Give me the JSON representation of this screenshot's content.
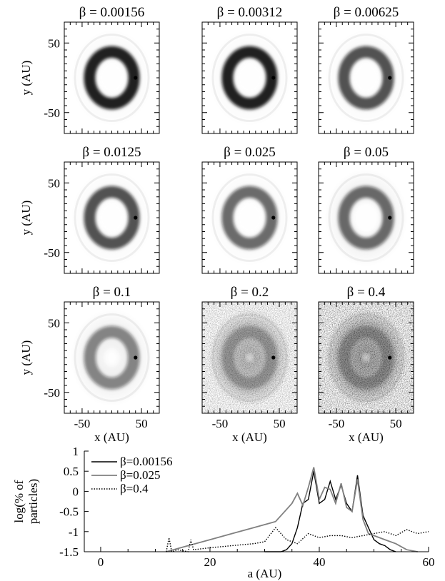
{
  "panels": [
    {
      "title": "β = 0.00156",
      "beta": 0.00156
    },
    {
      "title": "β = 0.00312",
      "beta": 0.00312
    },
    {
      "title": "β = 0.00625",
      "beta": 0.00625
    },
    {
      "title": "β = 0.0125",
      "beta": 0.0125
    },
    {
      "title": "β = 0.025",
      "beta": 0.025
    },
    {
      "title": "β = 0.05",
      "beta": 0.05
    },
    {
      "title": "β = 0.1",
      "beta": 0.1
    },
    {
      "title": "β = 0.2",
      "beta": 0.2
    },
    {
      "title": "β = 0.4",
      "beta": 0.4
    }
  ],
  "map_axes": {
    "xlabel": "x (AU)",
    "ylabel": "y (AU)",
    "xlim": [
      -80,
      80
    ],
    "ylim": [
      -80,
      80
    ],
    "ticks": [
      -50,
      50
    ],
    "xtick_labels": [
      "-50",
      "50"
    ],
    "ytick_labels": [
      "50",
      "-50"
    ]
  },
  "chart_data": {
    "type": "line",
    "xlabel": "a (AU)",
    "ylabel": "log(% of particles)",
    "ylabel_lines": [
      "log(% of",
      "particles)"
    ],
    "xlim": [
      -3,
      60
    ],
    "ylim": [
      -1.5,
      1
    ],
    "xticks": [
      0,
      20,
      40,
      60
    ],
    "xtick_labels": [
      "0",
      "20",
      "40",
      "60"
    ],
    "yticks": [
      1,
      0.5,
      0,
      -0.5,
      -1,
      -1.5
    ],
    "ytick_labels": [
      "1",
      "0.5",
      "0",
      "-0.5",
      "-1",
      "-1.5"
    ],
    "legend_position": "top-left",
    "series": [
      {
        "name": "β=0.00156",
        "color": "#000000",
        "dash": "solid",
        "x": [
          30,
          33,
          34,
          35,
          36,
          37,
          38,
          39,
          40,
          41,
          42,
          43,
          44,
          45,
          46,
          47,
          48,
          49,
          50,
          51,
          52,
          53,
          54
        ],
        "y": [
          -1.5,
          -1.5,
          -1.45,
          -1.3,
          -0.9,
          -0.3,
          -0.2,
          0.5,
          -0.3,
          -0.2,
          0.25,
          -0.2,
          0.15,
          -0.3,
          -0.5,
          0.4,
          -0.6,
          -0.9,
          -1.2,
          -1.3,
          -1.35,
          -1.45,
          -1.5
        ]
      },
      {
        "name": "β=0.025",
        "color": "#808080",
        "dash": "solid",
        "x": [
          12,
          16,
          20,
          24,
          28,
          32,
          34,
          35,
          36,
          37,
          38,
          39,
          40,
          41,
          42,
          43,
          44,
          45,
          46,
          47,
          48,
          49,
          50,
          52,
          54,
          56,
          58
        ],
        "y": [
          -1.5,
          -1.35,
          -1.2,
          -1.05,
          -0.9,
          -0.75,
          -0.45,
          -0.3,
          -0.05,
          -0.35,
          0.1,
          0.6,
          -0.2,
          0.1,
          0.05,
          -0.3,
          0.2,
          -0.4,
          -0.5,
          0.3,
          -0.7,
          -1.05,
          -1.1,
          -1.2,
          -1.3,
          -1.45,
          -1.5
        ]
      },
      {
        "name": "β=0.4",
        "color": "#000000",
        "dash": "dotted",
        "x": [
          12,
          12.5,
          13,
          14,
          16,
          16.5,
          17,
          20,
          24,
          28,
          30,
          32,
          34,
          36,
          38,
          40,
          42,
          44,
          46,
          48,
          50,
          52,
          54,
          56,
          58,
          60
        ],
        "y": [
          -1.5,
          -1.15,
          -1.5,
          -1.45,
          -1.5,
          -1.2,
          -1.45,
          -1.4,
          -1.35,
          -1.3,
          -1.25,
          -0.9,
          -1.2,
          -1.3,
          -1.05,
          -1.15,
          -1.1,
          -1.1,
          -1.15,
          -1.1,
          -1.05,
          -1.0,
          -1.1,
          -0.95,
          -1.05,
          -1.0
        ]
      }
    ]
  }
}
